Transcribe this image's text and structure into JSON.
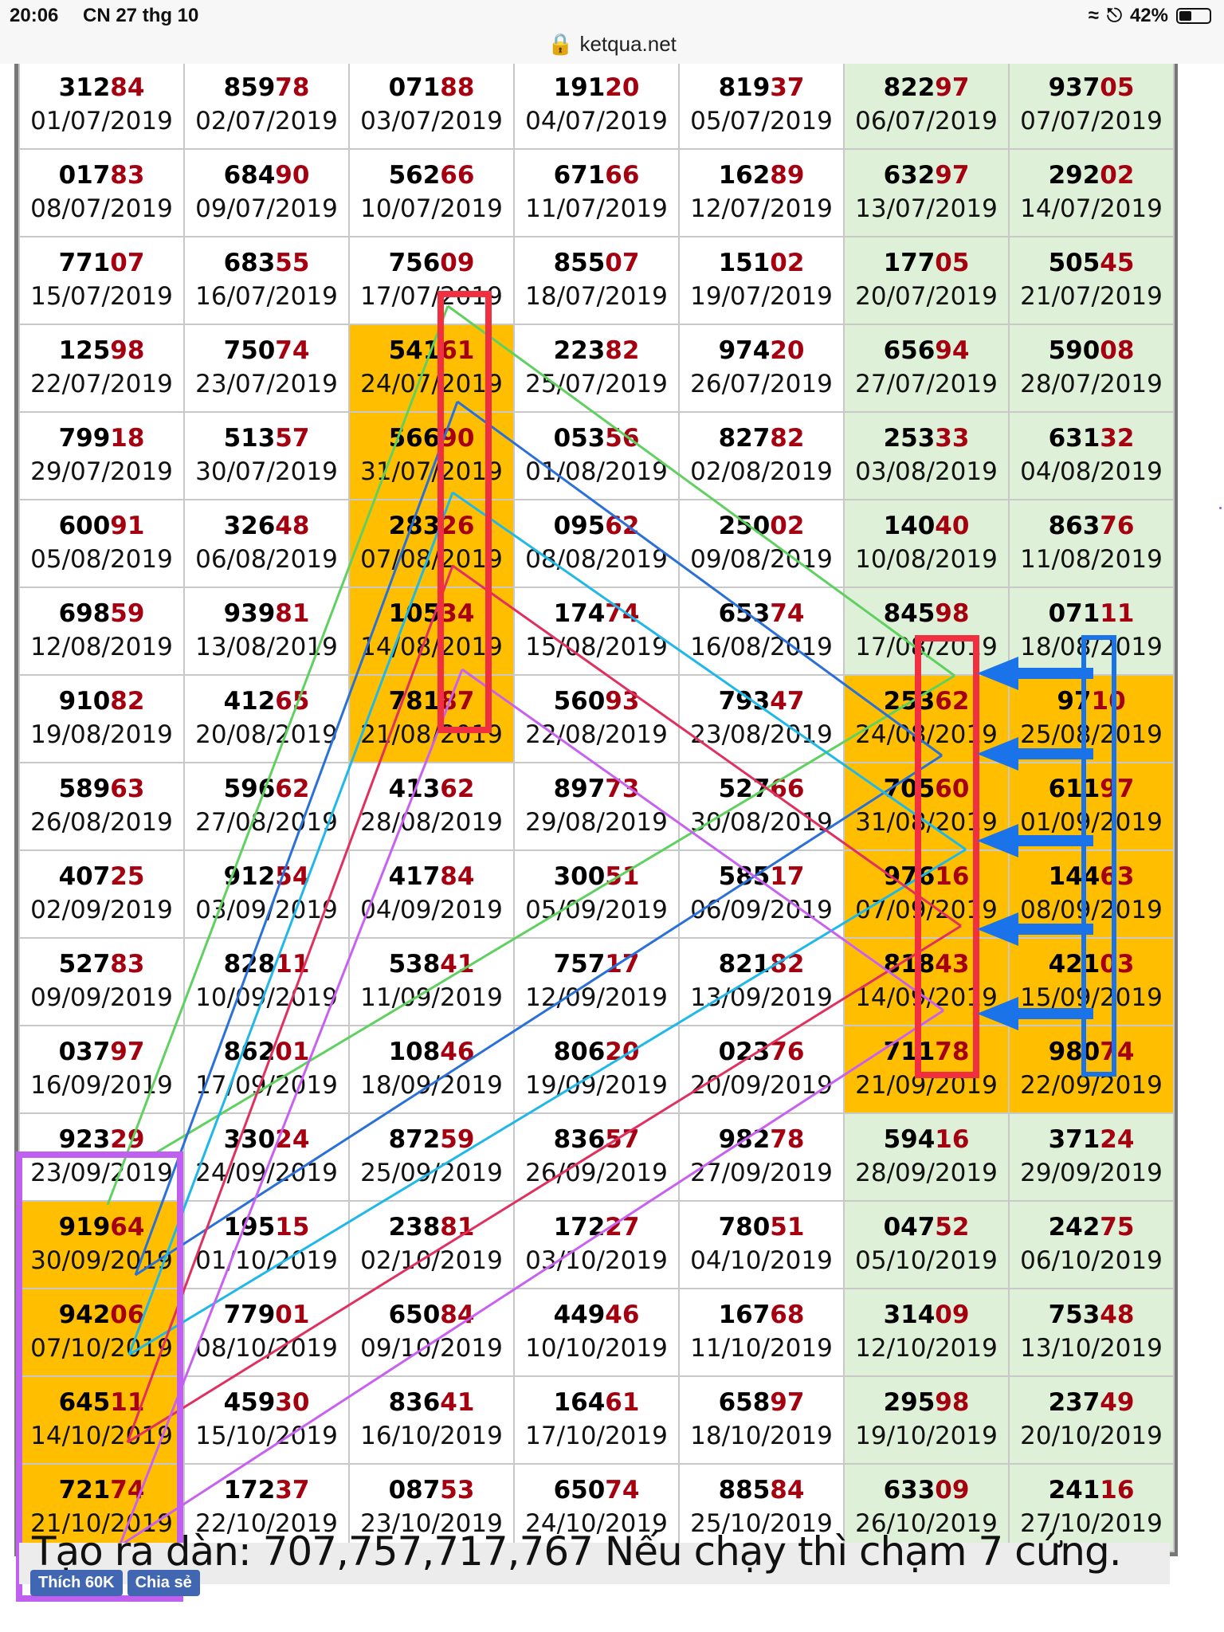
{
  "status_bar": {
    "time": "20:06",
    "date": "CN 27 thg 10",
    "battery": "42%",
    "battery_level": 0.42
  },
  "url_bar": {
    "domain": "ketqua.net"
  },
  "partial_row_numbers": [
    "31284",
    "85978",
    "07188",
    "19120",
    "81937",
    "82297",
    "93705"
  ],
  "rows": [
    [
      {
        "n": "31284",
        "d": "01/07/2019"
      },
      {
        "n": "85978",
        "d": "02/07/2019"
      },
      {
        "n": "07188",
        "d": "03/07/2019"
      },
      {
        "n": "19120",
        "d": "04/07/2019"
      },
      {
        "n": "81937",
        "d": "05/07/2019"
      },
      {
        "n": "82297",
        "d": "06/07/2019"
      },
      {
        "n": "93705",
        "d": "07/07/2019"
      }
    ],
    [
      {
        "n": "01783",
        "d": "08/07/2019"
      },
      {
        "n": "68490",
        "d": "09/07/2019"
      },
      {
        "n": "56266",
        "d": "10/07/2019"
      },
      {
        "n": "67166",
        "d": "11/07/2019"
      },
      {
        "n": "16289",
        "d": "12/07/2019"
      },
      {
        "n": "63297",
        "d": "13/07/2019"
      },
      {
        "n": "29202",
        "d": "14/07/2019"
      }
    ],
    [
      {
        "n": "77107",
        "d": "15/07/2019"
      },
      {
        "n": "68355",
        "d": "16/07/2019"
      },
      {
        "n": "75609",
        "d": "17/07/2019"
      },
      {
        "n": "85507",
        "d": "18/07/2019"
      },
      {
        "n": "15102",
        "d": "19/07/2019"
      },
      {
        "n": "17705",
        "d": "20/07/2019"
      },
      {
        "n": "50545",
        "d": "21/07/2019"
      }
    ],
    [
      {
        "n": "12598",
        "d": "22/07/2019"
      },
      {
        "n": "75074",
        "d": "23/07/2019"
      },
      {
        "n": "54161",
        "d": "24/07/2019"
      },
      {
        "n": "22382",
        "d": "25/07/2019"
      },
      {
        "n": "97420",
        "d": "26/07/2019"
      },
      {
        "n": "65694",
        "d": "27/07/2019"
      },
      {
        "n": "59008",
        "d": "28/07/2019"
      }
    ],
    [
      {
        "n": "79918",
        "d": "29/07/2019"
      },
      {
        "n": "51357",
        "d": "30/07/2019"
      },
      {
        "n": "56690",
        "d": "31/07/2019"
      },
      {
        "n": "05356",
        "d": "01/08/2019"
      },
      {
        "n": "82782",
        "d": "02/08/2019"
      },
      {
        "n": "25333",
        "d": "03/08/2019"
      },
      {
        "n": "63132",
        "d": "04/08/2019"
      }
    ],
    [
      {
        "n": "60091",
        "d": "05/08/2019"
      },
      {
        "n": "32648",
        "d": "06/08/2019"
      },
      {
        "n": "28326",
        "d": "07/08/2019"
      },
      {
        "n": "09562",
        "d": "08/08/2019"
      },
      {
        "n": "25002",
        "d": "09/08/2019"
      },
      {
        "n": "14040",
        "d": "10/08/2019"
      },
      {
        "n": "86376",
        "d": "11/08/2019"
      }
    ],
    [
      {
        "n": "69859",
        "d": "12/08/2019"
      },
      {
        "n": "93981",
        "d": "13/08/2019"
      },
      {
        "n": "10534",
        "d": "14/08/2019"
      },
      {
        "n": "17474",
        "d": "15/08/2019"
      },
      {
        "n": "65374",
        "d": "16/08/2019"
      },
      {
        "n": "84598",
        "d": "17/08/2019"
      },
      {
        "n": "07111",
        "d": "18/08/2019"
      }
    ],
    [
      {
        "n": "91082",
        "d": "19/08/2019"
      },
      {
        "n": "41265",
        "d": "20/08/2019"
      },
      {
        "n": "78187",
        "d": "21/08/2019"
      },
      {
        "n": "56093",
        "d": "22/08/2019"
      },
      {
        "n": "79347",
        "d": "23/08/2019"
      },
      {
        "n": "25362",
        "d": "24/08/2019"
      },
      {
        "n": "9710",
        "d": "25/08/2019"
      }
    ],
    [
      {
        "n": "58963",
        "d": "26/08/2019"
      },
      {
        "n": "59662",
        "d": "27/08/2019"
      },
      {
        "n": "41362",
        "d": "28/08/2019"
      },
      {
        "n": "89773",
        "d": "29/08/2019"
      },
      {
        "n": "52766",
        "d": "30/08/2019"
      },
      {
        "n": "70560",
        "d": "31/08/2019"
      },
      {
        "n": "61197",
        "d": "01/09/2019"
      }
    ],
    [
      {
        "n": "40725",
        "d": "02/09/2019"
      },
      {
        "n": "91254",
        "d": "03/09/2019"
      },
      {
        "n": "41784",
        "d": "04/09/2019"
      },
      {
        "n": "30051",
        "d": "05/09/2019"
      },
      {
        "n": "58517",
        "d": "06/09/2019"
      },
      {
        "n": "97616",
        "d": "07/09/2019"
      },
      {
        "n": "14463",
        "d": "08/09/2019"
      }
    ],
    [
      {
        "n": "52783",
        "d": "09/09/2019"
      },
      {
        "n": "82811",
        "d": "10/09/2019"
      },
      {
        "n": "53841",
        "d": "11/09/2019"
      },
      {
        "n": "75717",
        "d": "12/09/2019"
      },
      {
        "n": "82182",
        "d": "13/09/2019"
      },
      {
        "n": "81843",
        "d": "14/09/2019"
      },
      {
        "n": "42103",
        "d": "15/09/2019"
      }
    ],
    [
      {
        "n": "03797",
        "d": "16/09/2019"
      },
      {
        "n": "86201",
        "d": "17/09/2019"
      },
      {
        "n": "10846",
        "d": "18/09/2019"
      },
      {
        "n": "80620",
        "d": "19/09/2019"
      },
      {
        "n": "02376",
        "d": "20/09/2019"
      },
      {
        "n": "71178",
        "d": "21/09/2019"
      },
      {
        "n": "98074",
        "d": "22/09/2019"
      }
    ],
    [
      {
        "n": "92329",
        "d": "23/09/2019"
      },
      {
        "n": "33024",
        "d": "24/09/2019"
      },
      {
        "n": "87259",
        "d": "25/09/2019"
      },
      {
        "n": "83657",
        "d": "26/09/2019"
      },
      {
        "n": "98278",
        "d": "27/09/2019"
      },
      {
        "n": "59416",
        "d": "28/09/2019"
      },
      {
        "n": "37124",
        "d": "29/09/2019"
      }
    ],
    [
      {
        "n": "91964",
        "d": "30/09/2019"
      },
      {
        "n": "19515",
        "d": "01/10/2019"
      },
      {
        "n": "23881",
        "d": "02/10/2019"
      },
      {
        "n": "17227",
        "d": "03/10/2019"
      },
      {
        "n": "78051",
        "d": "04/10/2019"
      },
      {
        "n": "04752",
        "d": "05/10/2019"
      },
      {
        "n": "24275",
        "d": "06/10/2019"
      }
    ],
    [
      {
        "n": "94206",
        "d": "07/10/2019"
      },
      {
        "n": "77901",
        "d": "08/10/2019"
      },
      {
        "n": "65084",
        "d": "09/10/2019"
      },
      {
        "n": "44946",
        "d": "10/10/2019"
      },
      {
        "n": "16768",
        "d": "11/10/2019"
      },
      {
        "n": "31409",
        "d": "12/10/2019"
      },
      {
        "n": "75348",
        "d": "13/10/2019"
      }
    ],
    [
      {
        "n": "64511",
        "d": "14/10/2019"
      },
      {
        "n": "45930",
        "d": "15/10/2019"
      },
      {
        "n": "83641",
        "d": "16/10/2019"
      },
      {
        "n": "16461",
        "d": "17/10/2019"
      },
      {
        "n": "65897",
        "d": "18/10/2019"
      },
      {
        "n": "29598",
        "d": "19/10/2019"
      },
      {
        "n": "23749",
        "d": "20/10/2019"
      }
    ],
    [
      {
        "n": "72174",
        "d": "21/10/2019"
      },
      {
        "n": "17237",
        "d": "22/10/2019"
      },
      {
        "n": "08753",
        "d": "23/10/2019"
      },
      {
        "n": "65074",
        "d": "24/10/2019"
      },
      {
        "n": "88584",
        "d": "25/10/2019"
      },
      {
        "n": "63309",
        "d": "26/10/2019"
      },
      {
        "n": "24116",
        "d": "27/10/2019"
      }
    ]
  ],
  "highlighted_cells": [
    [
      3,
      2
    ],
    [
      4,
      2
    ],
    [
      5,
      2
    ],
    [
      6,
      2
    ],
    [
      7,
      2
    ],
    [
      7,
      5
    ],
    [
      7,
      6
    ],
    [
      8,
      5
    ],
    [
      8,
      6
    ],
    [
      9,
      5
    ],
    [
      9,
      6
    ],
    [
      10,
      5
    ],
    [
      10,
      6
    ],
    [
      11,
      5
    ],
    [
      11,
      6
    ],
    [
      13,
      0
    ],
    [
      14,
      0
    ],
    [
      15,
      0
    ],
    [
      16,
      0
    ]
  ],
  "caption": "Tạo ra dàn: 707,757,717,767 Nếu chạy thì chạm 7 cứng.",
  "facebook": {
    "like_label": "Thích 60K",
    "share_label": "Chia sẻ"
  },
  "colors": {
    "tail_red": "#a50010",
    "highlight": "#ffbf00",
    "weekend_bg": "#dff0d8",
    "annot_red": "#f03040",
    "annot_blue": "#1a73e8",
    "annot_purple": "#c060f0",
    "line_green": "#60d060",
    "line_blue": "#2a70d8",
    "line_cyan": "#20b8e8",
    "line_pink": "#e03060",
    "line_violet": "#c860f0"
  }
}
